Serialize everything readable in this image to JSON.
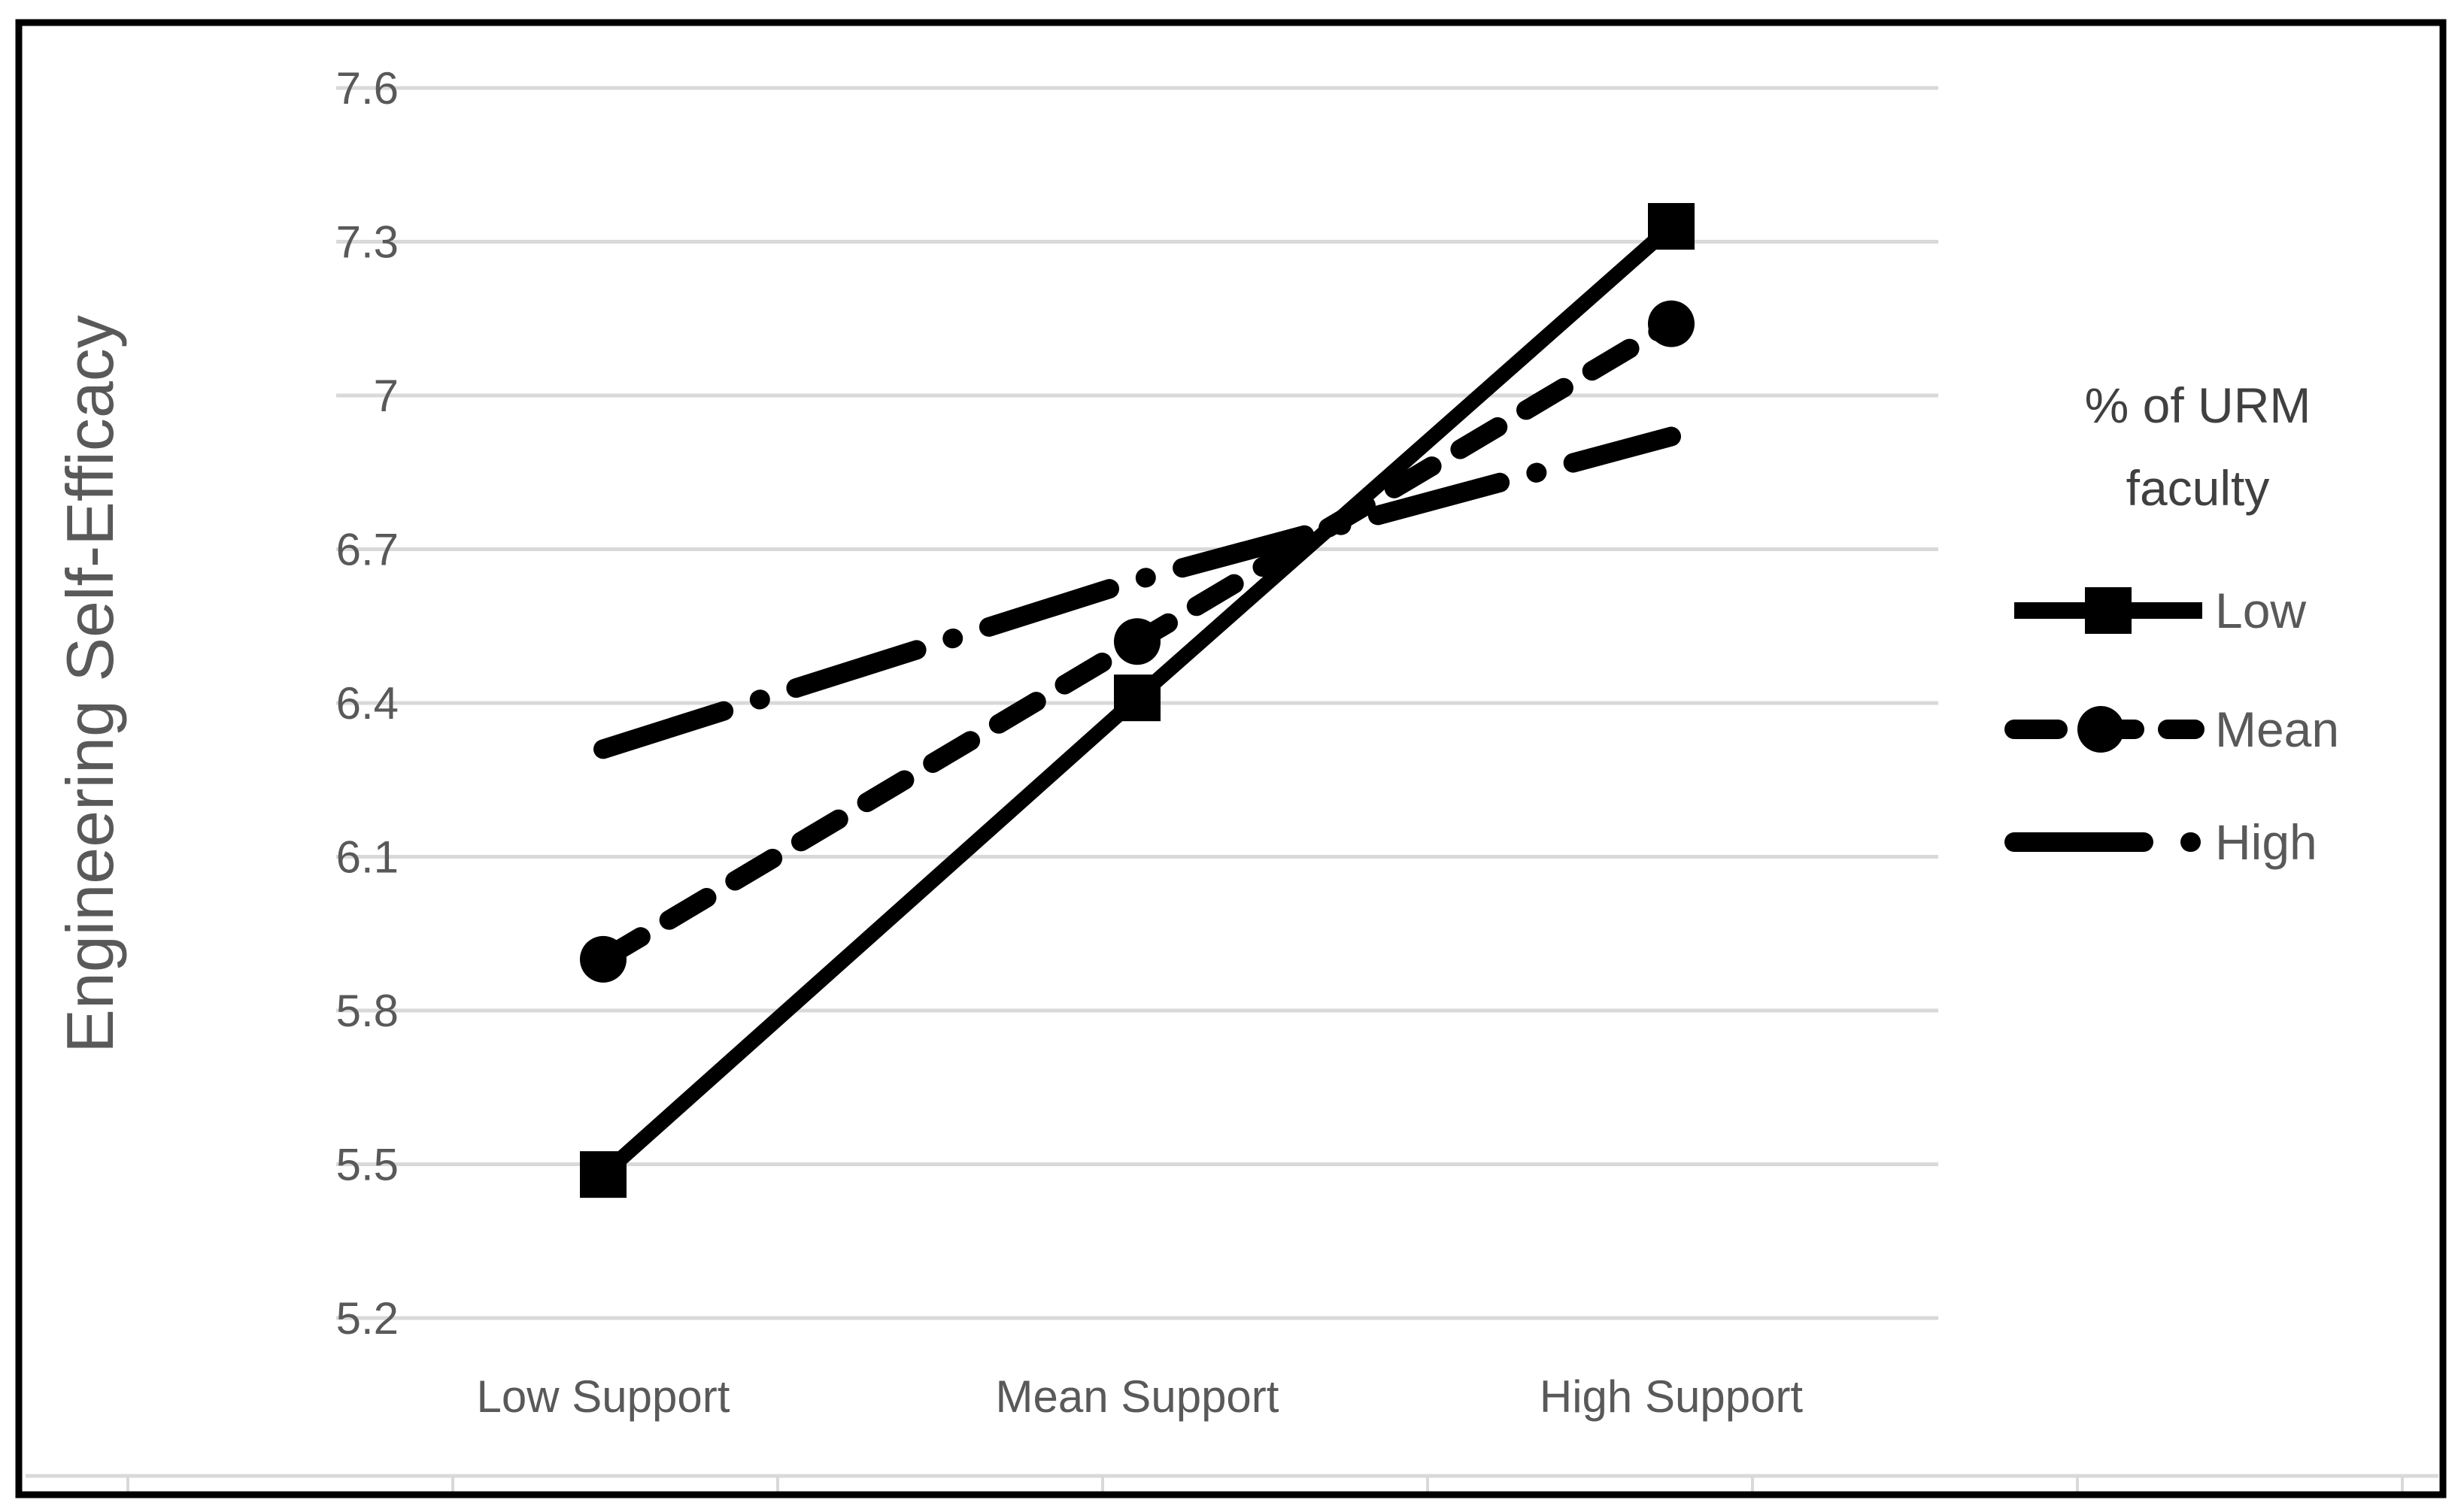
{
  "figure": {
    "description": "Interaction line plot of engineering self-efficacy by mentor support and percent URM faculty"
  },
  "chart_data": {
    "type": "line",
    "title": "",
    "xlabel": "",
    "ylabel": "Engineering Self-Efficacy",
    "categories": [
      "Low Support",
      "Mean Support",
      "High Support"
    ],
    "ytick_labels": [
      "7.6",
      "7.3",
      "7",
      "6.7",
      "6.4",
      "6.1",
      "5.8",
      "5.5",
      "5.2"
    ],
    "ytick_values": [
      7.6,
      7.3,
      7.0,
      6.7,
      6.4,
      6.1,
      5.8,
      5.5,
      5.2
    ],
    "ylim": [
      5.2,
      7.6
    ],
    "grid": true,
    "legend": {
      "position": "right",
      "title_line1": "% of URM",
      "title_line2": "faculty",
      "entries": [
        {
          "label": "Low",
          "line": "solid",
          "marker": "square"
        },
        {
          "label": "Mean",
          "line": "dashed",
          "marker": "circle"
        },
        {
          "label": "High",
          "line": "dash-dot",
          "marker": "dot"
        }
      ]
    },
    "series": [
      {
        "name": "Low",
        "values": [
          5.48,
          6.41,
          7.33
        ]
      },
      {
        "name": "Mean",
        "values": [
          5.9,
          6.52,
          7.14
        ]
      },
      {
        "name": "High",
        "values": [
          6.31,
          6.64,
          6.92
        ]
      }
    ],
    "colors": {
      "line": "#000000",
      "grid": "#d9d9d9",
      "text": "#595959",
      "legend_title": "#404040",
      "border": "#000000",
      "background": "#ffffff"
    }
  }
}
